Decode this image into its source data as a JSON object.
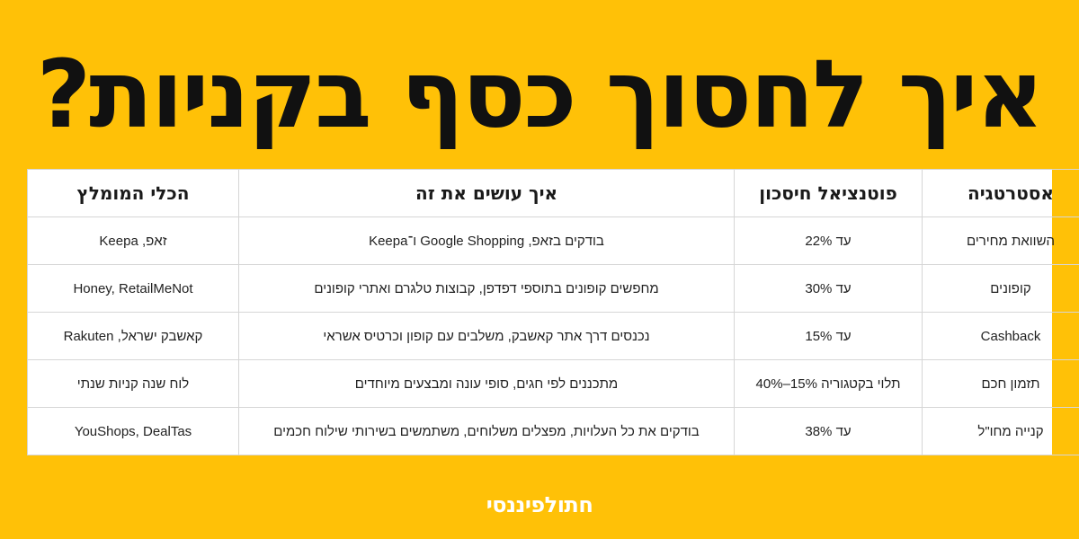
{
  "title": "איך לחסוך כסף בקניות?",
  "table": {
    "headers": {
      "strategy": "אסטרטגיה",
      "potential": "פוטנציאל חיסכון",
      "how": "איך עושים את זה",
      "tool": "הכלי המומלץ"
    },
    "rows": [
      {
        "strategy": "השוואת מחירים",
        "potential": "עד 22%",
        "how": "בודקים בזאפ, Google Shopping ו־Keepa",
        "tool": "זאפ, Keepa"
      },
      {
        "strategy": "קופונים",
        "potential": "עד 30%",
        "how": "מחפשים קופונים בתוספי דפדפן, קבוצות טלגרם ואתרי קופונים",
        "tool": "Honey, RetailMeNot"
      },
      {
        "strategy": "Cashback",
        "potential": "עד 15%",
        "how": "נכנסים דרך אתר קאשבק, משלבים עם קופון וכרטיס אשראי",
        "tool": "קאשבק ישראל, Rakuten"
      },
      {
        "strategy": "תזמון חכם",
        "potential": "תלוי בקטגוריה 15%–40%",
        "how": "מתכננים לפי חגים, סופי עונה ומבצעים מיוחדים",
        "tool": "לוח שנה קניות שנתי"
      },
      {
        "strategy": "קנייה מחו\"ל",
        "potential": "עד 38%",
        "how": "בודקים את כל העלויות, מפצלים משלוחים, משתמשים בשירותי שילוח חכמים",
        "tool": "YouShops, DealTas"
      }
    ]
  },
  "logo": {
    "text": "חתולפיננסי"
  },
  "colors": {
    "background": "#FFC107",
    "title": "#111111",
    "table_bg": "#ffffff"
  }
}
